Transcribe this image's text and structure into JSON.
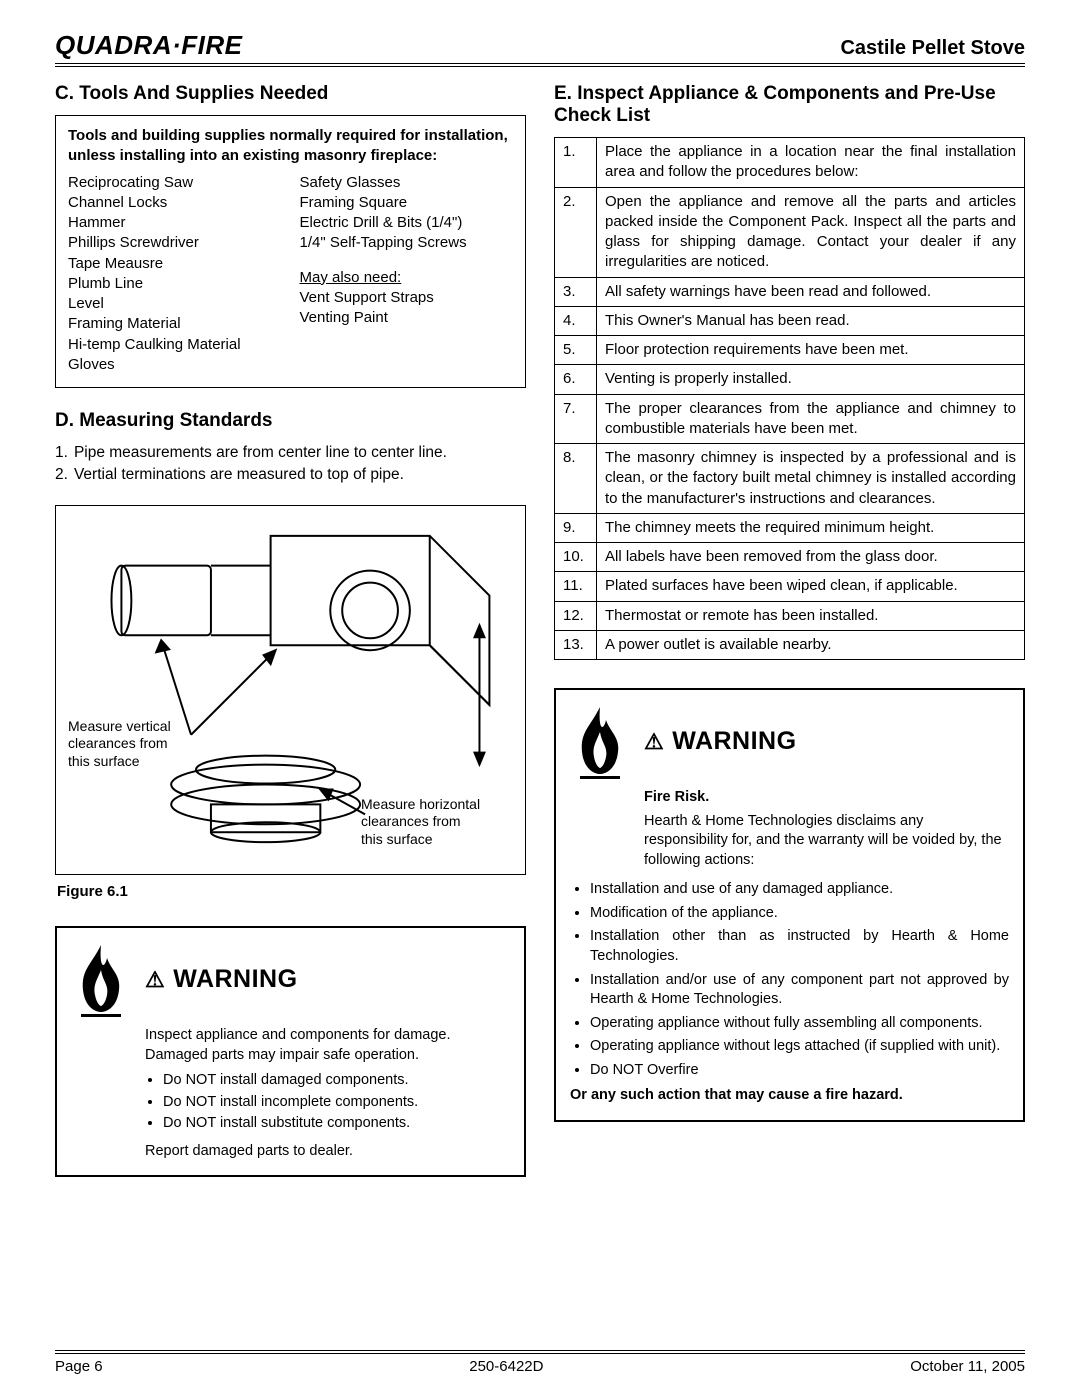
{
  "header": {
    "brand": "QUADRA·FIRE",
    "product": "Castile Pellet Stove"
  },
  "sectionC": {
    "title": "C.  Tools And Supplies Needed",
    "intro": "Tools and building supplies normally required for installation, unless installing into an existing masonry fireplace:",
    "left": [
      "Reciprocating Saw",
      "Channel Locks",
      "Hammer",
      "Phillips Screwdriver",
      "Tape Meausre",
      "Plumb Line",
      "Level",
      "Framing Material",
      "Hi-temp Caulking Material",
      "Gloves"
    ],
    "right1": [
      "Safety Glasses",
      "Framing Square",
      "Electric Drill & Bits (1/4\")",
      "1/4\" Self-Tapping Screws"
    ],
    "mayNeedLabel": "May also need:",
    "right2": [
      "Vent Support Straps",
      "Venting Paint"
    ]
  },
  "sectionD": {
    "title": "D.  Measuring Standards",
    "items": [
      "Pipe measurements are from center line to center line.",
      "Vertial terminations are measured to top of pipe."
    ]
  },
  "figure": {
    "caption": "Figure 6.1",
    "label1a": "Measure vertical",
    "label1b": "clearances from",
    "label1c": "this surface",
    "label2a": "Measure horizontal",
    "label2b": "clearances from",
    "label2c": "this surface"
  },
  "warning1": {
    "title": "WARNING",
    "lead": "Inspect appliance and components for damage. Damaged parts may impair safe operation.",
    "bullets": [
      "Do NOT install damaged components.",
      "Do NOT install incomplete components.",
      "Do NOT install substitute components."
    ],
    "tail": "Report damaged parts to dealer."
  },
  "sectionE": {
    "title": "E. Inspect Appliance & Components and Pre-Use Check List",
    "rows": [
      [
        "1.",
        "Place the appliance in a location near the final installation area and follow the procedures below:"
      ],
      [
        "2.",
        "Open the appliance and remove all the parts and articles packed inside the Component Pack.  Inspect all the parts and glass for shipping damage.  Contact your dealer if any irregularities are noticed."
      ],
      [
        "3.",
        "All safety warnings have been read and followed."
      ],
      [
        "4.",
        "This Owner's Manual has been read."
      ],
      [
        "5.",
        "Floor protection requirements have been met."
      ],
      [
        "6.",
        "Venting is properly installed."
      ],
      [
        "7.",
        "The proper clearances from the appliance and chimney to combustible materials have been met."
      ],
      [
        "8.",
        "The masonry chimney is inspected by a professional and is clean, or the factory built metal chimney is installed according to the manufacturer's instructions and clearances."
      ],
      [
        "9.",
        "The chimney meets the required minimum height."
      ],
      [
        "10.",
        "All labels have been removed from the glass door."
      ],
      [
        "11.",
        "Plated surfaces have been wiped clean, if applicable."
      ],
      [
        "12.",
        "Thermostat or remote has been installed."
      ],
      [
        "13.",
        "A power outlet is available nearby."
      ]
    ]
  },
  "warning2": {
    "title": "WARNING",
    "sub": "Fire Risk.",
    "intro": "Hearth & Home Technologies disclaims any responsibility for, and the warranty will be voided by, the following actions:",
    "bullets": [
      "Installation and use of any damaged appliance.",
      "Modification of the appliance.",
      "Installation other than as instructed by Hearth & Home Technologies.",
      "Installation and/or use of any component part not approved by Hearth & Home Technologies.",
      "Operating appliance without fully assembling all components.",
      "Operating appliance without legs attached (if supplied with unit).",
      "Do NOT Overfire"
    ],
    "tail": "Or any such action that may cause a fire hazard."
  },
  "footer": {
    "page": "Page  6",
    "docnum": "250-6422D",
    "date": "October 11, 2005"
  }
}
